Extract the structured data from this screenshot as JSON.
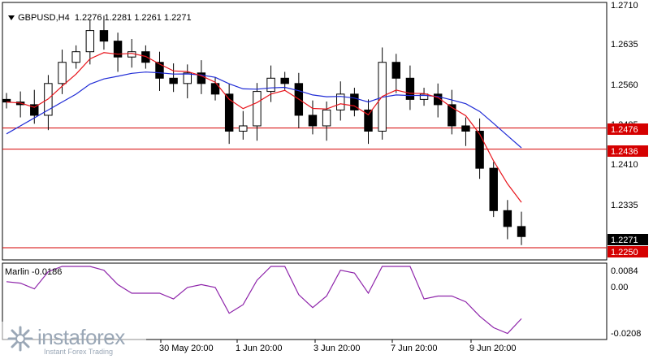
{
  "header": {
    "symbol": "GBPUSD,H4",
    "ohlc": "1.2276 1.2281 1.2261 1.2271"
  },
  "price_axis": {
    "ticks": [
      "1.2710",
      "1.2635",
      "1.2560",
      "1.2485",
      "1.2410",
      "1.2335"
    ],
    "current_price": "1.2271",
    "levels": [
      "1.2476",
      "1.2436",
      "1.2250"
    ]
  },
  "indicator": {
    "label": "Marlin -0.0186",
    "ticks": [
      "0.0084",
      "0.00",
      "-0.0208"
    ]
  },
  "time_axis": {
    "labels": [
      "30 May 20:00",
      "1 Jun 20:00",
      "3 Jun 20:00",
      "7 Jun 20:00",
      "9 Jun 20:00"
    ]
  },
  "logo": {
    "word": "instaforex",
    "tagline": "Instant Forex Trading"
  },
  "colors": {
    "candle": "#000000",
    "ema_fast": "#e8141b",
    "ema_slow": "#1f2bd6",
    "level_line": "#d50000",
    "oscillator": "#8e24aa",
    "current_price_box": "#000000"
  },
  "chart_data": {
    "type": "candlestick",
    "series": [
      {
        "name": "GBPUSD",
        "values": "OHLC"
      },
      {
        "values": "fast MA"
      },
      {
        "values": "slow MA"
      },
      {
        "name": "Marlin",
        "values": "oscillator"
      }
    ],
    "ylim": [
      1.223,
      1.271
    ],
    "horizontal_levels": [
      1.2476,
      1.2436,
      1.225
    ],
    "closes": [
      1.2525,
      1.252,
      1.25,
      1.256,
      1.26,
      1.262,
      1.266,
      1.264,
      1.261,
      1.262,
      1.26,
      1.257,
      1.256,
      1.258,
      1.256,
      1.254,
      1.247,
      1.248,
      1.2545,
      1.257,
      1.256,
      1.25,
      1.248,
      1.251,
      1.254,
      1.251,
      1.247,
      1.26,
      1.257,
      1.253,
      1.254,
      1.252,
      1.248,
      1.247,
      1.24,
      1.232,
      1.229,
      1.2271
    ],
    "marlin_range": [
      -0.0208,
      0.0084
    ]
  }
}
